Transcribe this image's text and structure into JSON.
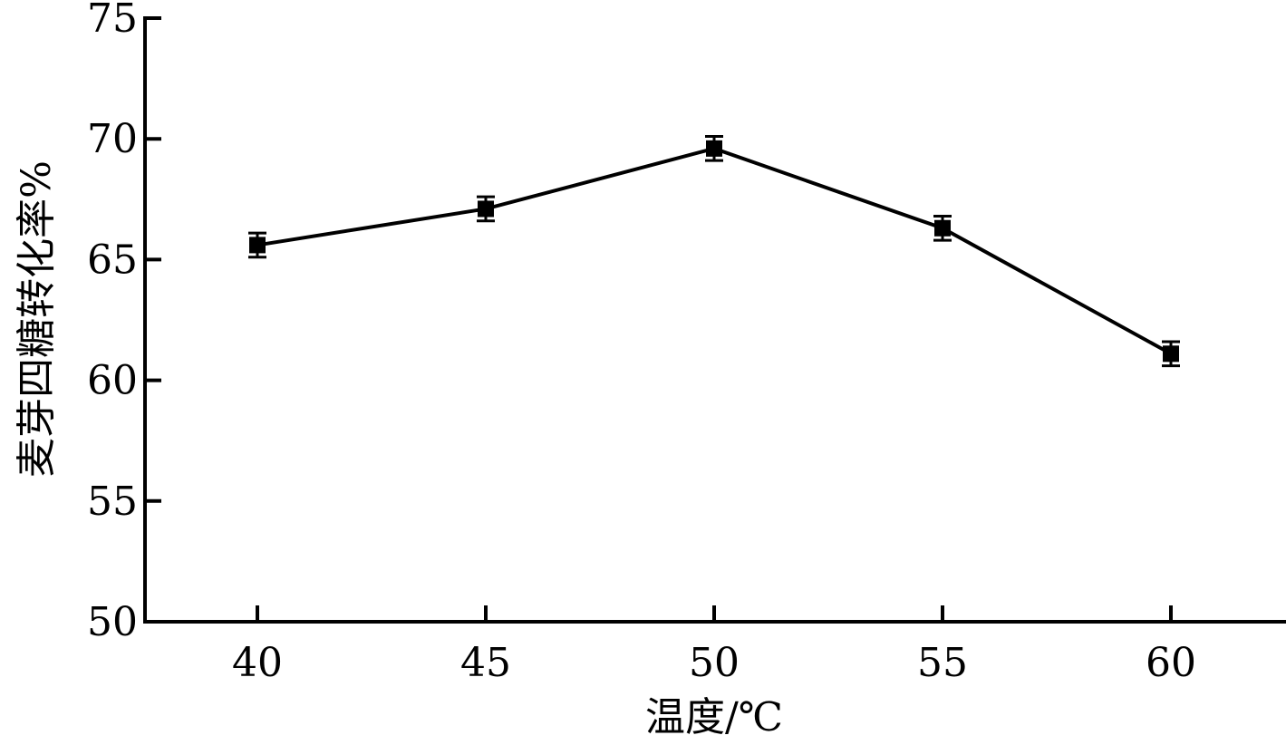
{
  "chart_data": {
    "type": "line",
    "title": "",
    "xlabel": "温度/℃",
    "ylabel": "麦芽四糖转化率%",
    "x": [
      40,
      45,
      50,
      55,
      60
    ],
    "series": [
      {
        "values": [
          65.6,
          67.1,
          69.6,
          66.3,
          61.1
        ],
        "error": [
          0.5,
          0.5,
          0.5,
          0.5,
          0.5
        ]
      }
    ],
    "x_ticks": [
      "40",
      "45",
      "50",
      "55",
      "60"
    ],
    "y_ticks": [
      "50",
      "55",
      "60",
      "65",
      "70",
      "75"
    ],
    "ylim": [
      50,
      75
    ],
    "grid": false,
    "legend": "none",
    "marker": "square",
    "line_color": "#000000"
  }
}
